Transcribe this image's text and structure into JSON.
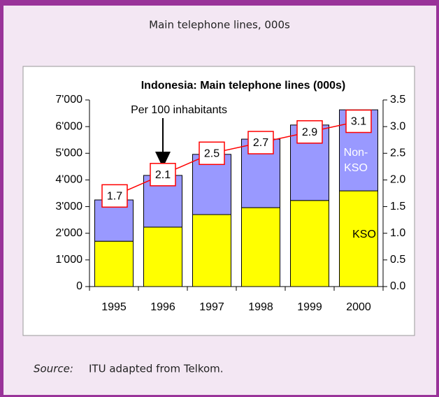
{
  "header": {
    "title": "Main telephone lines, 000s"
  },
  "chart_data": {
    "type": "bar",
    "stacked": true,
    "title": "Indonesia: Main telephone lines (000s)",
    "categories": [
      "1995",
      "1996",
      "1997",
      "1998",
      "1999",
      "2000"
    ],
    "series": [
      {
        "name": "KSO",
        "color": "#ffff00",
        "values": [
          1700,
          2230,
          2700,
          2960,
          3230,
          3590
        ]
      },
      {
        "name": "Non-KSO",
        "color": "#9999ff",
        "values": [
          1550,
          1940,
          2260,
          2570,
          2830,
          3040
        ]
      },
      {
        "name": "Per 100 inhabitants",
        "color": "#ff0000",
        "axis": "y2",
        "type": "line",
        "values": [
          1.7,
          2.1,
          2.5,
          2.7,
          2.9,
          3.1
        ]
      }
    ],
    "ylim": [
      0,
      7000
    ],
    "yticks": [
      0,
      {
        "value": 1000,
        "label": "1'000"
      },
      {
        "value": 2000,
        "label": "2'000"
      },
      {
        "value": 3000,
        "label": "3'000"
      },
      {
        "value": 4000,
        "label": "4'000"
      },
      {
        "value": 5000,
        "label": "5'000"
      },
      {
        "value": 6000,
        "label": "6'000"
      },
      {
        "value": 7000,
        "label": "7'000"
      }
    ],
    "y2lim": [
      0,
      3.5
    ],
    "y2ticks": [
      {
        "value": 0,
        "label": "0.0"
      },
      0.5,
      {
        "value": 1,
        "label": "1.0"
      },
      1.5,
      {
        "value": 2,
        "label": "2.0"
      },
      2.5,
      {
        "value": 3,
        "label": "3.0"
      },
      3.5
    ],
    "grid": false
  },
  "source": {
    "label": "Source:",
    "text": "ITU adapted from Telkom."
  }
}
